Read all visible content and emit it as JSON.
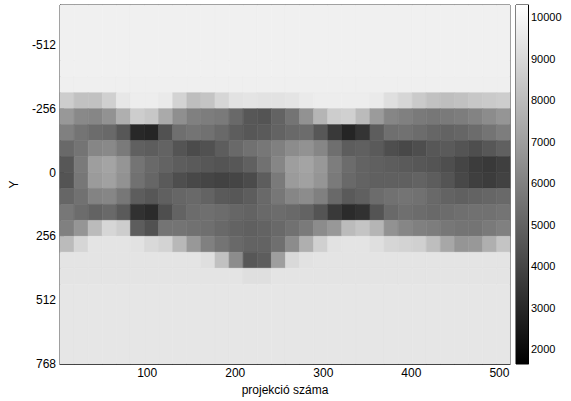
{
  "chart_data": {
    "type": "heatmap",
    "x_label": "projekció száma",
    "y_label": "Y",
    "xlim": [
      1,
      512
    ],
    "xticks": [
      100,
      200,
      300,
      400,
      500
    ],
    "ylim": [
      -672,
      768
    ],
    "yticks": [
      -512,
      -256,
      0,
      256,
      512,
      768
    ],
    "x_edges": [
      1,
      17,
      33,
      49,
      65,
      81,
      97,
      113,
      129,
      145,
      161,
      177,
      193,
      209,
      225,
      241,
      257,
      273,
      289,
      305,
      321,
      337,
      353,
      369,
      385,
      401,
      417,
      433,
      449,
      465,
      481,
      497,
      512
    ],
    "y_edges": [
      -672,
      -448,
      -384,
      -320,
      -256,
      -192,
      -128,
      -64,
      0,
      64,
      128,
      192,
      256,
      320,
      384,
      448,
      768
    ],
    "cells": [
      [
        9800,
        9800,
        9800,
        9800,
        9800,
        9800,
        9800,
        9800,
        9800,
        9800,
        9800,
        9800,
        9800,
        9800,
        9800,
        9800,
        9800,
        9800,
        9800,
        9800,
        9800,
        9800,
        9800,
        9800,
        9800,
        9800,
        9800,
        9800,
        9800,
        9800,
        9800,
        9800
      ],
      [
        9800,
        9800,
        9800,
        9800,
        9800,
        9800,
        9800,
        9800,
        9800,
        9800,
        9800,
        9800,
        9800,
        9800,
        9800,
        9800,
        9800,
        9800,
        9800,
        9800,
        9800,
        9800,
        9800,
        9800,
        9800,
        9800,
        9800,
        9800,
        9800,
        9800,
        9800,
        9800
      ],
      [
        9750,
        9750,
        9750,
        9750,
        9750,
        9750,
        9750,
        9750,
        9750,
        9750,
        9750,
        9750,
        9750,
        9750,
        9750,
        9750,
        9750,
        9750,
        9750,
        9750,
        9750,
        9750,
        9750,
        9750,
        9750,
        9750,
        9750,
        9750,
        9750,
        9750,
        9750,
        9750
      ],
      [
        8600,
        8200,
        8200,
        8700,
        9500,
        9700,
        9700,
        9600,
        8800,
        8100,
        8300,
        8900,
        9300,
        9400,
        9300,
        9300,
        9400,
        9600,
        9700,
        9700,
        9700,
        9700,
        9600,
        9200,
        8900,
        8500,
        8200,
        8100,
        8200,
        8400,
        8500,
        8600
      ],
      [
        6800,
        6300,
        6200,
        6600,
        7600,
        8600,
        8400,
        7400,
        6500,
        6000,
        5900,
        5800,
        5200,
        4600,
        4500,
        5000,
        5600,
        6600,
        7800,
        8600,
        8700,
        8000,
        6900,
        6200,
        6000,
        5800,
        5700,
        5800,
        5900,
        6100,
        6400,
        6700
      ],
      [
        6000,
        5600,
        5300,
        5200,
        4600,
        3000,
        2900,
        4400,
        5400,
        5600,
        5500,
        5200,
        4800,
        4600,
        4700,
        5000,
        5200,
        5300,
        4600,
        3600,
        2900,
        3400,
        4800,
        5400,
        5500,
        5300,
        5100,
        5000,
        5100,
        5300,
        5600,
        5900
      ],
      [
        5200,
        5600,
        6200,
        6300,
        5800,
        4900,
        4800,
        5000,
        4500,
        4200,
        4400,
        4800,
        5200,
        5500,
        5700,
        6000,
        6400,
        6600,
        6200,
        5400,
        4800,
        4900,
        4700,
        4300,
        4100,
        4300,
        4600,
        4700,
        4500,
        4300,
        4600,
        4900
      ],
      [
        4600,
        5800,
        7000,
        7200,
        6700,
        5600,
        5200,
        5000,
        4800,
        4700,
        4600,
        4500,
        4600,
        4900,
        5500,
        6200,
        7000,
        7200,
        6800,
        5900,
        5300,
        5000,
        4900,
        4800,
        4700,
        4600,
        4500,
        4300,
        4000,
        3700,
        3600,
        3800
      ],
      [
        4500,
        5700,
        6900,
        7100,
        6600,
        5500,
        5100,
        4700,
        4300,
        4100,
        4000,
        3900,
        4000,
        4200,
        4800,
        5800,
        6900,
        7100,
        6700,
        5800,
        5200,
        5000,
        4900,
        4900,
        4900,
        5000,
        4800,
        4500,
        4100,
        3800,
        3700,
        3900
      ],
      [
        5100,
        5500,
        6100,
        6200,
        5700,
        4800,
        4600,
        4900,
        5100,
        5200,
        5000,
        4700,
        4600,
        4800,
        5200,
        5700,
        6200,
        6400,
        6000,
        5200,
        4700,
        4900,
        5300,
        5500,
        5600,
        5500,
        5200,
        5000,
        4900,
        5000,
        5100,
        5200
      ],
      [
        5700,
        5300,
        5000,
        5200,
        4700,
        3300,
        3100,
        4300,
        5000,
        5300,
        5400,
        5300,
        5100,
        5000,
        5200,
        5300,
        5200,
        5000,
        4500,
        3600,
        3100,
        3300,
        4500,
        5200,
        5400,
        5300,
        5200,
        5300,
        5400,
        5500,
        5500,
        5600
      ],
      [
        6000,
        6700,
        8000,
        8900,
        8600,
        4800,
        4400,
        5600,
        5600,
        5500,
        5400,
        5200,
        5000,
        4900,
        5000,
        5200,
        5500,
        5800,
        6400,
        6800,
        8000,
        8300,
        7800,
        6600,
        6200,
        6000,
        5900,
        5700,
        5600,
        5600,
        5800,
        6000
      ],
      [
        8000,
        8900,
        9400,
        9400,
        9400,
        9300,
        9000,
        8800,
        7900,
        6800,
        6000,
        5600,
        5200,
        5000,
        5000,
        5400,
        6400,
        7600,
        8700,
        9300,
        9400,
        9400,
        9200,
        8900,
        8800,
        8700,
        8100,
        7300,
        6700,
        6800,
        7600,
        8300
      ],
      [
        9400,
        9400,
        9400,
        9400,
        9400,
        9400,
        9400,
        9400,
        9400,
        9400,
        9200,
        8200,
        6400,
        4600,
        4800,
        7000,
        9000,
        9300,
        9400,
        9400,
        9400,
        9400,
        9400,
        9400,
        9400,
        9400,
        9400,
        9400,
        9400,
        9400,
        9400,
        9400
      ],
      [
        9400,
        9400,
        9400,
        9400,
        9400,
        9400,
        9400,
        9400,
        9400,
        9400,
        9400,
        9400,
        9400,
        9200,
        9200,
        9400,
        9400,
        9400,
        9400,
        9400,
        9400,
        9400,
        9400,
        9400,
        9400,
        9400,
        9400,
        9400,
        9400,
        9400,
        9400,
        9400
      ],
      [
        9450,
        9450,
        9450,
        9450,
        9450,
        9450,
        9450,
        9450,
        9450,
        9450,
        9450,
        9450,
        9450,
        9450,
        9450,
        9450,
        9450,
        9450,
        9450,
        9450,
        9450,
        9450,
        9450,
        9450,
        9450,
        9450,
        9450,
        9450,
        9450,
        9450,
        9450,
        9450
      ]
    ],
    "colorbar": {
      "range": [
        1650,
        10300
      ],
      "ticks": [
        2000,
        3000,
        4000,
        5000,
        6000,
        7000,
        8000,
        9000,
        10000
      ]
    }
  }
}
